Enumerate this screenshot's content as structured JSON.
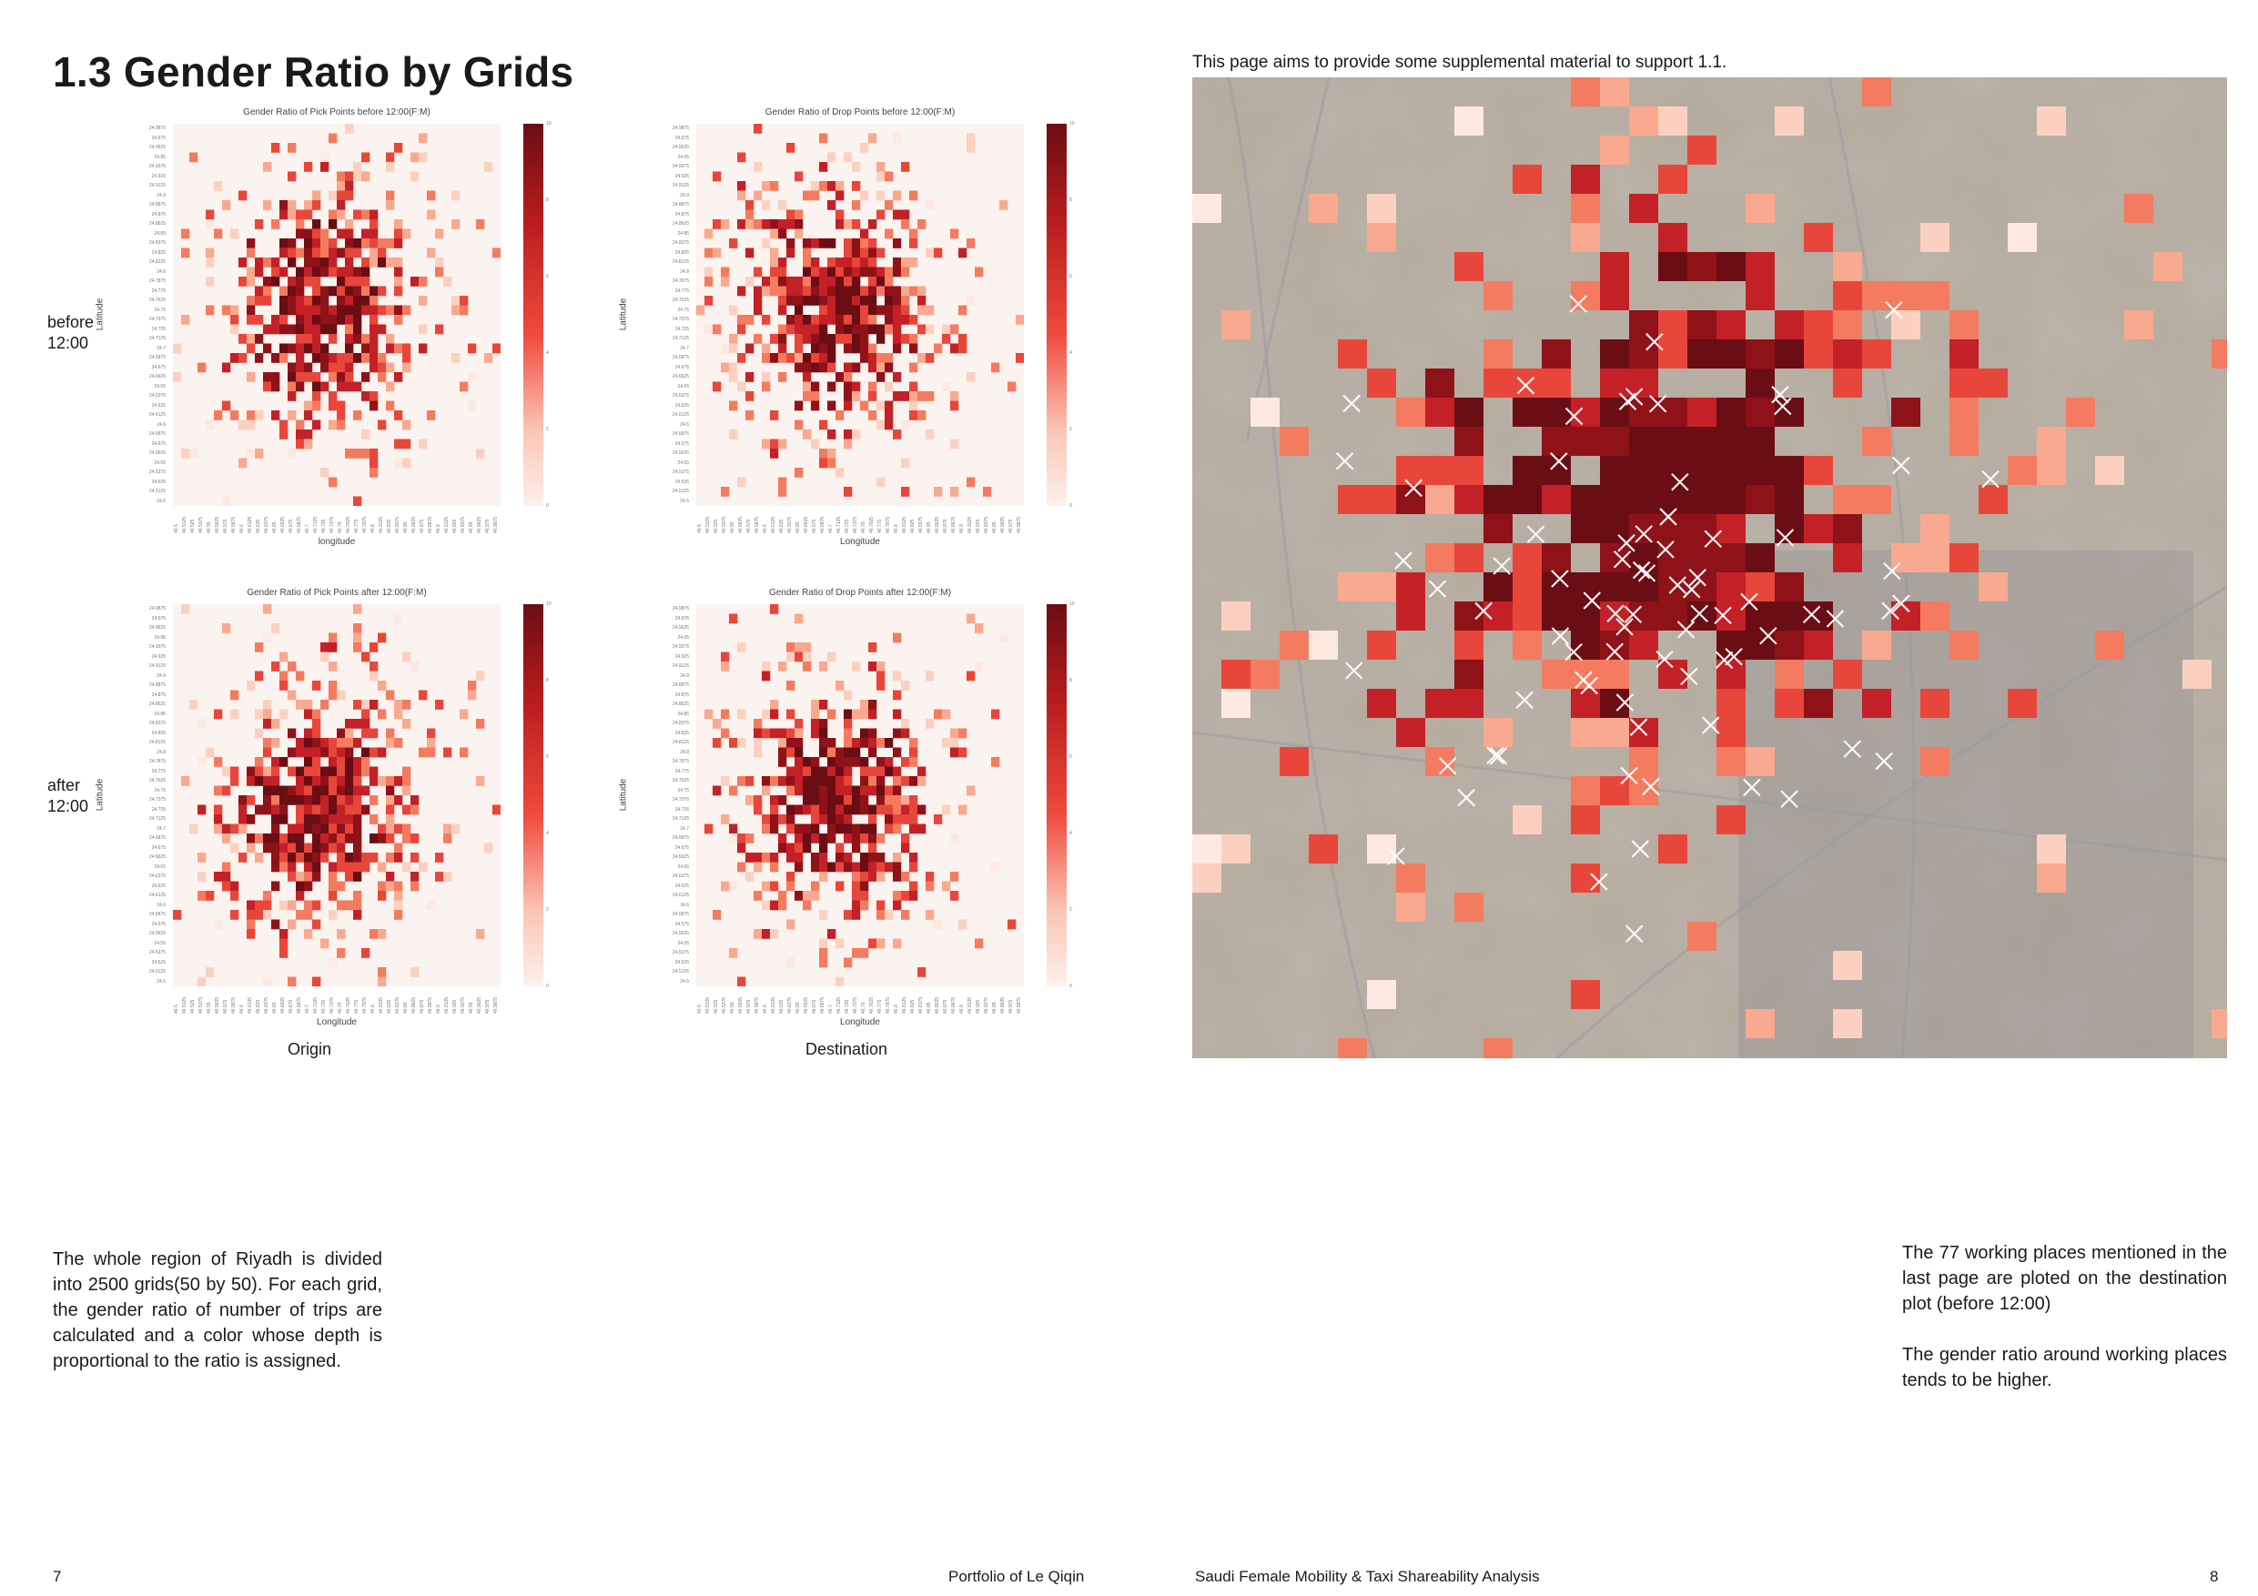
{
  "title": "1.3 Gender Ratio by Grids",
  "intro": "This page aims to provide some supplemental material to support 1.1.",
  "row_labels": [
    "before\n12:00",
    "after\n12:00"
  ],
  "col_labels": [
    "Origin",
    "Destination"
  ],
  "charts": [
    {
      "title": "Gender Ratio of Pick Points before 12:00(F:M)",
      "ylabel": "Latitude",
      "xlabel": "longitude"
    },
    {
      "title": "Gender Ratio of Drop Points before 12:00(F:M)",
      "ylabel": "Latitude",
      "xlabel": "Longitude"
    },
    {
      "title": "Gender Ratio of Pick Points after 12:00(F:M)",
      "ylabel": "Latitude",
      "xlabel": "Longitude"
    },
    {
      "title": "Gender Ratio of Drop Points after 12:00(F:M)",
      "ylabel": "Latitude",
      "xlabel": "Longitude"
    }
  ],
  "lat_ticks": [
    "24.9875",
    "24.975",
    "24.9625",
    "24.95",
    "24.9375",
    "24.925",
    "24.9125",
    "24.9",
    "24.8875",
    "24.875",
    "24.8625",
    "24.85",
    "24.8375",
    "24.825",
    "24.8125",
    "24.8",
    "24.7875",
    "24.775",
    "24.7625",
    "24.75",
    "24.7375",
    "24.725",
    "24.7125",
    "24.7",
    "24.6875",
    "24.675",
    "24.6625",
    "24.65",
    "24.6375",
    "24.625",
    "24.6125",
    "24.6",
    "24.5875",
    "24.575",
    "24.5625",
    "24.55",
    "24.5375",
    "24.525",
    "24.5125",
    "24.5"
  ],
  "lon_ticks": [
    "46.5",
    "46.5125",
    "46.525",
    "46.5375",
    "46.55",
    "46.5625",
    "46.575",
    "46.5875",
    "46.6",
    "46.6125",
    "46.625",
    "46.6375",
    "46.65",
    "46.6625",
    "46.675",
    "46.6875",
    "46.7",
    "46.7125",
    "46.725",
    "46.7375",
    "46.75",
    "46.7625",
    "46.775",
    "46.7875",
    "46.8",
    "46.8125",
    "46.825",
    "46.8375",
    "46.85",
    "46.8625",
    "46.875",
    "46.8875",
    "46.9",
    "46.9125",
    "46.925",
    "46.9375",
    "46.95",
    "46.9625",
    "46.975",
    "46.9875"
  ],
  "colorbar_ticks": [
    "10",
    "8",
    "6",
    "4",
    "2",
    "0"
  ],
  "map_markers": 77,
  "left_paragraph": "The whole region of Riyadh is divided into 2500 grids(50 by 50). For each grid, the gender ratio of number of trips are calculated and a color whose depth is proportional to the ratio is assigned.",
  "right_paragraph_1": "The 77 working places mentioned in the last page are ploted on the destination plot (before 12:00)",
  "right_paragraph_2": "The gender ratio around working places tends to be higher.",
  "footer": {
    "page_left": "7",
    "portfolio": "Portfolio of Le Qiqin",
    "project": "Saudi Female Mobility & Taxi Shareability Analysis",
    "page_right": "8"
  },
  "colors": {
    "dark": "#6b0d14",
    "mid": "#ef4a3c",
    "light": "#fdeee8",
    "background": "#fbf3ef"
  }
}
